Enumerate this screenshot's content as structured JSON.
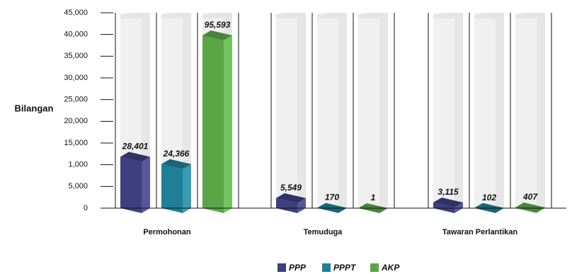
{
  "chart_data": {
    "type": "bar3d",
    "y_label": "Bilangan",
    "categories": [
      "Permohonan",
      "Temuduga",
      "Tawaran Perlantikan"
    ],
    "series": [
      {
        "name": "PPP",
        "color": "#3d3f7e",
        "values": [
          28401,
          5549,
          3115
        ],
        "value_labels": [
          "28,401",
          "5,549",
          "3,115"
        ]
      },
      {
        "name": "PPPT",
        "color": "#1f7f96",
        "values": [
          24366,
          170,
          102
        ],
        "value_labels": [
          "24,366",
          "170",
          "102"
        ]
      },
      {
        "name": "AKP",
        "color": "#5aa647",
        "values": [
          95593,
          1,
          407
        ],
        "value_labels": [
          "95,593",
          "1",
          "407"
        ]
      }
    ],
    "yticks": [
      0,
      {
        "value": 5000,
        "label": "5,000"
      },
      {
        "value": 1000,
        "label": "1,000"
      },
      {
        "value": 15000,
        "label": "15,000"
      },
      {
        "value": 20000,
        "label": "20,000"
      },
      {
        "value": 25000,
        "label": "25,000"
      },
      {
        "value": 30000,
        "label": "30,000"
      },
      {
        "value": 35000,
        "label": "35,000"
      },
      {
        "value": 40000,
        "label": "40,000"
      },
      {
        "value": 45000,
        "label": "45,000"
      }
    ],
    "legend": "bottom"
  }
}
